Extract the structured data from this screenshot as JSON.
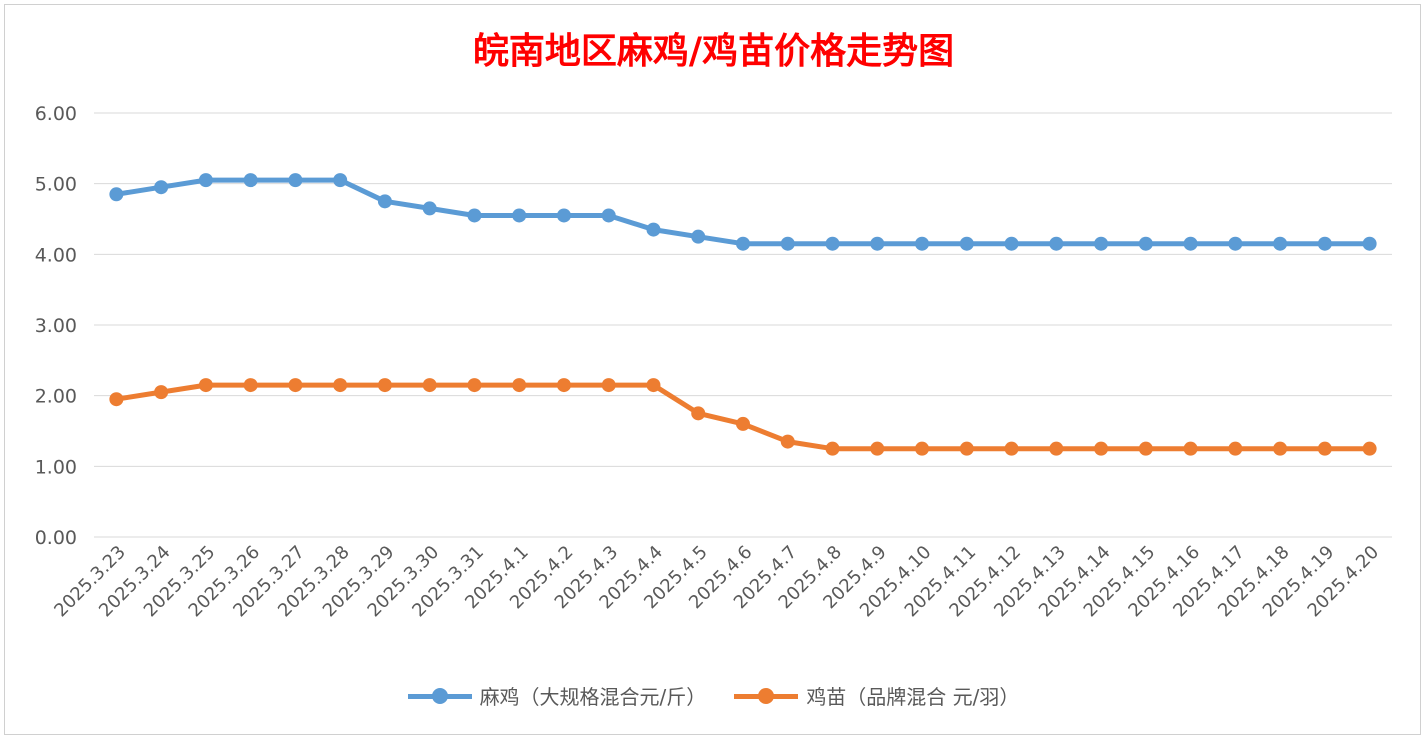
{
  "title": "皖南地区麻鸡/鸡苗价格走势图",
  "chart_data": {
    "type": "line",
    "title": "皖南地区麻鸡/鸡苗价格走势图",
    "xlabel": "",
    "ylabel": "",
    "ylim": [
      0,
      6
    ],
    "yticks": [
      "0.00",
      "1.00",
      "2.00",
      "3.00",
      "4.00",
      "5.00",
      "6.00"
    ],
    "grid": true,
    "legend_position": "bottom",
    "categories": [
      "2025.3.23",
      "2025.3.24",
      "2025.3.25",
      "2025.3.26",
      "2025.3.27",
      "2025.3.28",
      "2025.3.29",
      "2025.3.30",
      "2025.3.31",
      "2025.4.1",
      "2025.4.2",
      "2025.4.3",
      "2025.4.4",
      "2025.4.5",
      "2025.4.6",
      "2025.4.7",
      "2025.4.8",
      "2025.4.9",
      "2025.4.10",
      "2025.4.11",
      "2025.4.12",
      "2025.4.13",
      "2025.4.14",
      "2025.4.15",
      "2025.4.16",
      "2025.4.17",
      "2025.4.18",
      "2025.4.19",
      "2025.4.20"
    ],
    "series": [
      {
        "name": "麻鸡（大规格混合元/斤）",
        "color": "#5b9bd5",
        "values": [
          4.85,
          4.95,
          5.05,
          5.05,
          5.05,
          5.05,
          4.75,
          4.65,
          4.55,
          4.55,
          4.55,
          4.55,
          4.35,
          4.25,
          4.15,
          4.15,
          4.15,
          4.15,
          4.15,
          4.15,
          4.15,
          4.15,
          4.15,
          4.15,
          4.15,
          4.15,
          4.15,
          4.15,
          4.15
        ]
      },
      {
        "name": "鸡苗（品牌混合 元/羽）",
        "color": "#ed7d31",
        "values": [
          1.95,
          2.05,
          2.15,
          2.15,
          2.15,
          2.15,
          2.15,
          2.15,
          2.15,
          2.15,
          2.15,
          2.15,
          2.15,
          1.75,
          1.6,
          1.35,
          1.25,
          1.25,
          1.25,
          1.25,
          1.25,
          1.25,
          1.25,
          1.25,
          1.25,
          1.25,
          1.25,
          1.25,
          1.25
        ]
      }
    ]
  }
}
